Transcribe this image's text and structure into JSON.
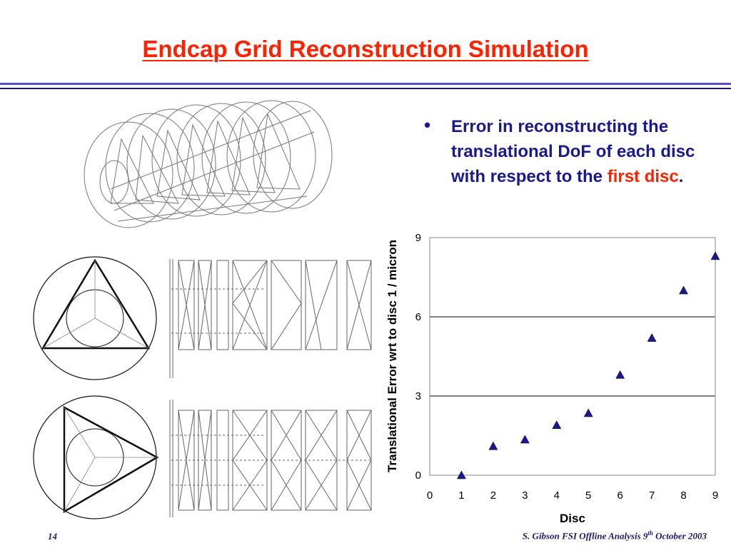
{
  "slide": {
    "title": "Endcap Grid Reconstruction Simulation",
    "bullet": {
      "symbol": "•",
      "text_before": "Error in reconstructing the translational DoF of each disc with respect to the ",
      "text_highlight": "first disc",
      "text_after": "."
    },
    "footer": {
      "page_number": "14",
      "author_text": "S. Gibson  FSI Offline Analysis  9",
      "superscript": "th",
      "date_text": " October 2003"
    },
    "colors": {
      "title": "#ff2200",
      "bullet_text": "#1a1a8e",
      "highlight": "#ff2200",
      "rule_light": "#5a4fc6",
      "rule_dark": "#1a1a7a",
      "marker": "#1a1a8e"
    }
  },
  "figure": {
    "description_icons": [
      "endcap-grid-3d-view",
      "triangle-disc-top",
      "triangle-disc-side"
    ]
  },
  "chart_data": {
    "type": "scatter",
    "marker": "triangle",
    "xlabel": "Disc",
    "ylabel": "Translational Error wrt to disc 1 / micron",
    "xlim": [
      0,
      9
    ],
    "ylim": [
      0,
      9
    ],
    "xticks": [
      0,
      1,
      2,
      3,
      4,
      5,
      6,
      7,
      8,
      9
    ],
    "yticks": [
      0,
      3,
      6,
      9
    ],
    "grid": "horizontal",
    "series": [
      {
        "x": [
          1,
          2,
          3,
          4,
          5,
          6,
          7,
          8,
          9
        ],
        "y": [
          0.0,
          1.1,
          1.35,
          1.9,
          2.35,
          3.8,
          5.2,
          7.0,
          8.3
        ]
      }
    ]
  }
}
